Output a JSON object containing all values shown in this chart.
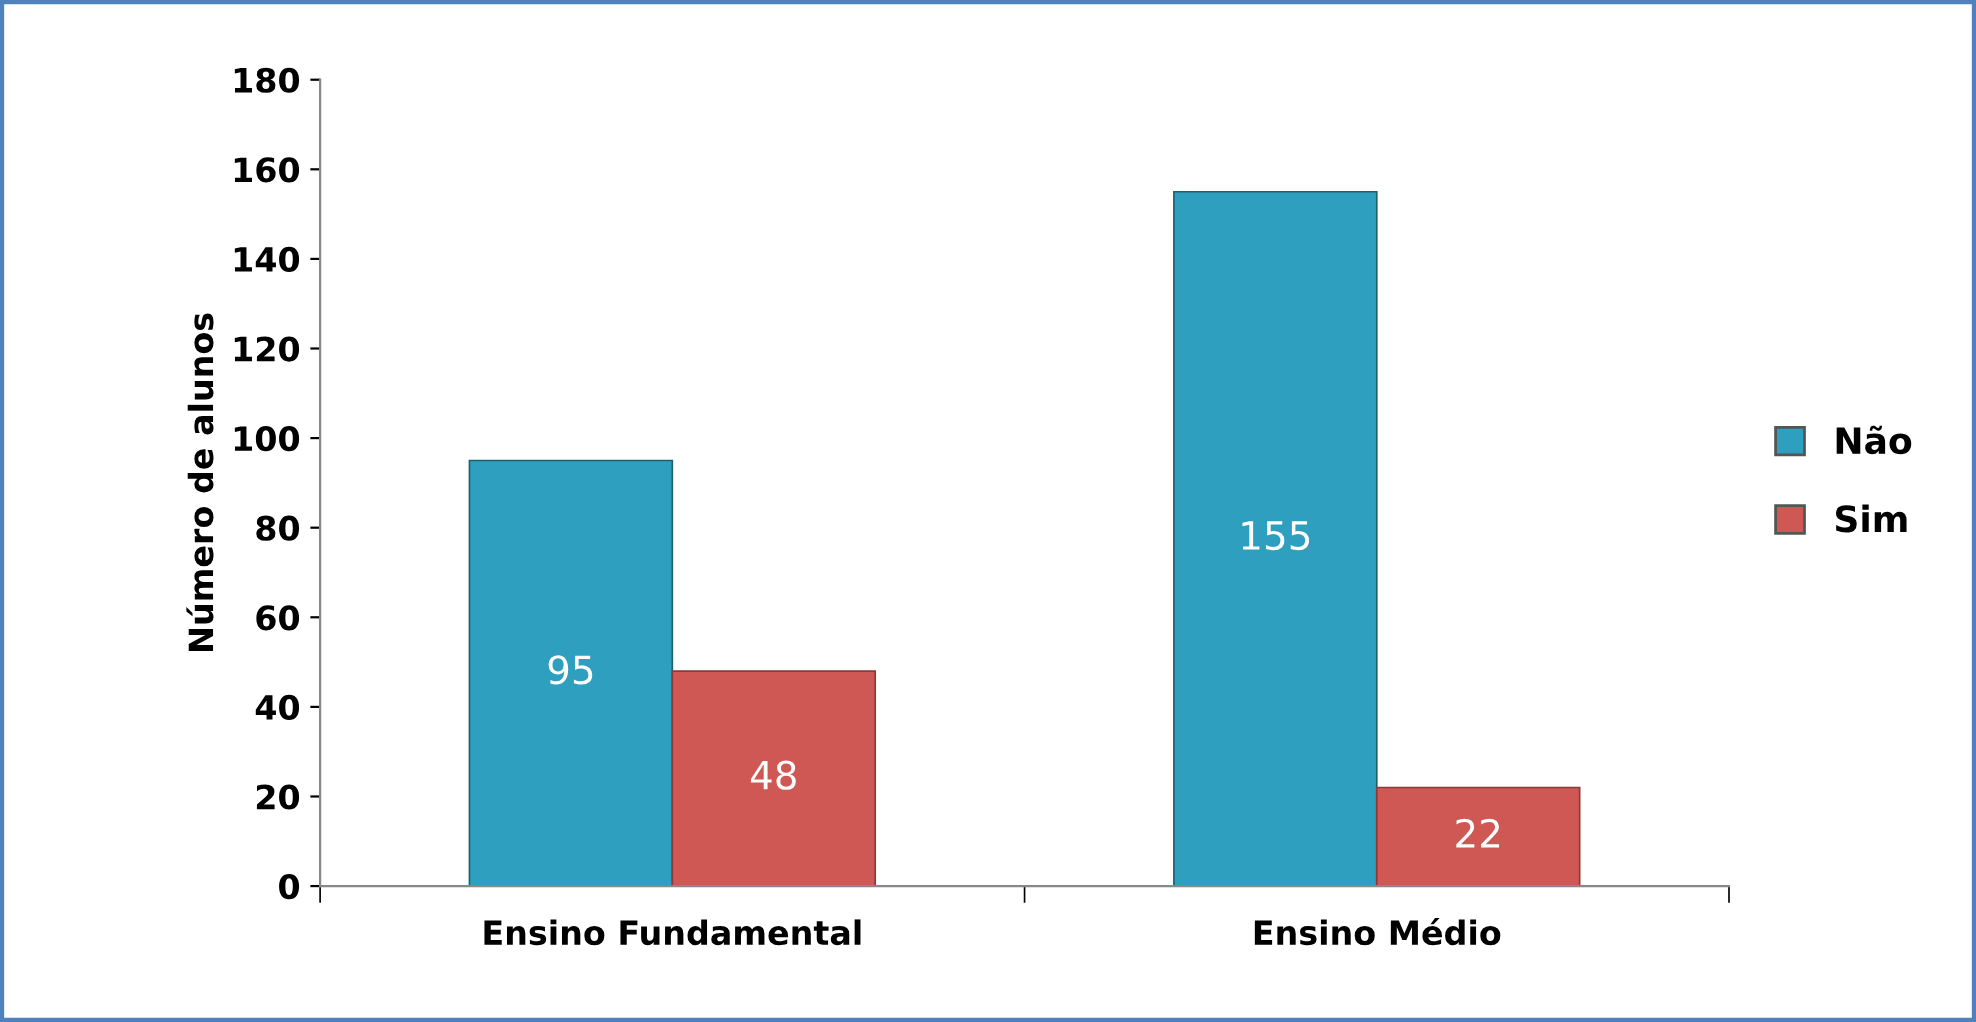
{
  "chart_data": {
    "type": "bar",
    "ylabel": "Número de alunos",
    "categories": [
      "Ensino Fundamental",
      "Ensino Médio"
    ],
    "series": [
      {
        "name": "Não",
        "color": "#2e9fbe",
        "values": [
          95,
          155
        ]
      },
      {
        "name": "Sim",
        "color": "#cf5754",
        "values": [
          48,
          22
        ]
      }
    ],
    "ylim": [
      0,
      180
    ],
    "yticks": [
      0,
      20,
      40,
      60,
      80,
      100,
      120,
      140,
      160,
      180
    ],
    "data_labels": true,
    "legend": "right",
    "grid": false
  }
}
